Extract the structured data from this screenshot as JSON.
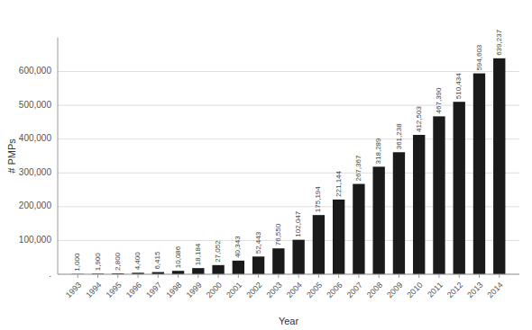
{
  "chart_data": {
    "type": "bar",
    "xlabel": "Year",
    "ylabel": "# PMPs",
    "x": [
      1993,
      1994,
      1995,
      1996,
      1997,
      1998,
      1999,
      2000,
      2001,
      2002,
      2003,
      2004,
      2005,
      2006,
      2007,
      2008,
      2009,
      2010,
      2011,
      2012,
      2013,
      2014
    ],
    "values": [
      1000,
      1900,
      2800,
      4400,
      6415,
      10086,
      18184,
      27052,
      40343,
      52443,
      76550,
      102047,
      175194,
      221144,
      267367,
      318289,
      361238,
      412503,
      467390,
      510434,
      594603,
      639237
    ],
    "value_labels": [
      "1,000",
      "1,900",
      "2,800",
      "4,400",
      "6,415",
      "10,086",
      "18,184",
      "27,052",
      "40,343",
      "52,443",
      "76,550",
      "102,047",
      "175,194",
      "221,144",
      "267,367",
      "318,289",
      "361,238",
      "412,503",
      "467,390",
      "510,434",
      "594,603",
      "639,237"
    ],
    "data_labels": true,
    "color": "#1a1a1a",
    "xlim": [
      1992,
      2015
    ],
    "xticks": [
      1993,
      1994,
      1995,
      1996,
      1997,
      1998,
      1999,
      2000,
      2001,
      2002,
      2003,
      2004,
      2005,
      2006,
      2007,
      2008,
      2009,
      2010,
      2011,
      2012,
      2013,
      2014
    ],
    "ylim": [
      0,
      700000
    ],
    "yticks": [
      {
        "value": 0,
        "label": "."
      },
      {
        "value": 100000,
        "label": "100,000"
      },
      {
        "value": 200000,
        "label": "200,000"
      },
      {
        "value": 300000,
        "label": "300,000"
      },
      {
        "value": 400000,
        "label": "400,000"
      },
      {
        "value": 500000,
        "label": "500,000"
      },
      {
        "value": 600000,
        "label": "600,000"
      }
    ],
    "grid": true
  }
}
